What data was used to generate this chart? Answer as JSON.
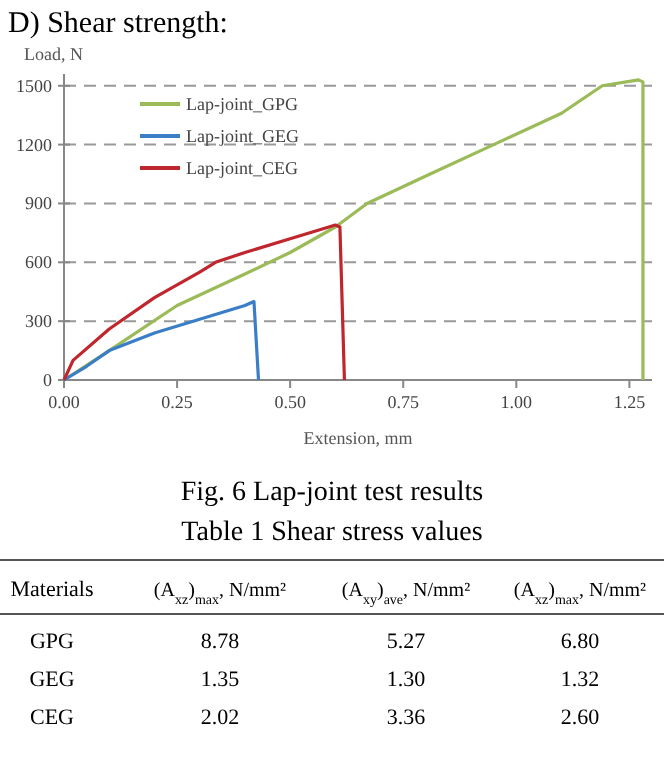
{
  "chart_data": [
    {
      "type": "line",
      "title": "D) Shear strength:",
      "ylabel": "Load, N",
      "xlabel": "Extension, mm",
      "annotations": [
        "Fig. 6 Lap-joint test results"
      ],
      "xlim": [
        0,
        1.3
      ],
      "xticks": [
        {
          "value": 0,
          "label": "0.00"
        },
        {
          "value": 0.25,
          "label": "0.25"
        },
        {
          "value": 0.5,
          "label": "0.50"
        },
        {
          "value": 0.75,
          "label": "0.75"
        },
        {
          "value": 1,
          "label": "1.00"
        },
        {
          "value": 1.25,
          "label": "1.25"
        }
      ],
      "ylim": [
        0,
        1560
      ],
      "yticks": [
        0,
        300,
        600,
        900,
        1200,
        1500
      ],
      "grid": "y",
      "legend": "top left",
      "line_style": "solid",
      "series": [
        {
          "name": "Lap-joint_GPG",
          "color": "#9bbb59",
          "x": [
            0,
            0.1,
            0.25,
            0.4,
            0.5,
            0.6,
            0.67,
            0.8,
            0.95,
            1.1,
            1.19,
            1.27,
            1.28,
            1.28
          ],
          "values": [
            0,
            150,
            380,
            540,
            650,
            780,
            900,
            1040,
            1200,
            1360,
            1500,
            1530,
            1520,
            0
          ]
        },
        {
          "name": "Lap-joint_GEG",
          "color": "#3a7ec8",
          "x": [
            0,
            0.05,
            0.1,
            0.2,
            0.3,
            0.4,
            0.42,
            0.43
          ],
          "values": [
            0,
            70,
            150,
            240,
            310,
            380,
            400,
            0
          ]
        },
        {
          "name": "Lap-joint_CEG",
          "color": "#c0262d",
          "x": [
            0,
            0.02,
            0.1,
            0.2,
            0.3,
            0.335,
            0.4,
            0.5,
            0.6,
            0.61,
            0.62
          ],
          "values": [
            0,
            100,
            260,
            420,
            550,
            600,
            650,
            720,
            790,
            780,
            0
          ]
        }
      ]
    },
    {
      "type": "other",
      "title": "Table 1 Shear stress values",
      "xlabel": "Materials",
      "data_labels": true,
      "categories": [
        "GPG",
        "GEG",
        "CEG"
      ],
      "series": [
        {
          "name": "(A$_{xz}$)$_{max}$, N/mm²",
          "values": [
            8.78,
            1.35,
            2.02
          ]
        },
        {
          "name": "(A$_{xy}$)$_{ave}$, N/mm²",
          "values": [
            5.27,
            1.3,
            3.36
          ],
          "value_labels": [
            "5.27",
            "1.30",
            "3.36"
          ]
        },
        {
          "name": "(A$_{xz}$)$_{max}$, N/mm²",
          "values": [
            6.8,
            1.32,
            2.6
          ],
          "value_labels": [
            "6.80",
            "1.32",
            "2.60"
          ]
        }
      ]
    }
  ]
}
